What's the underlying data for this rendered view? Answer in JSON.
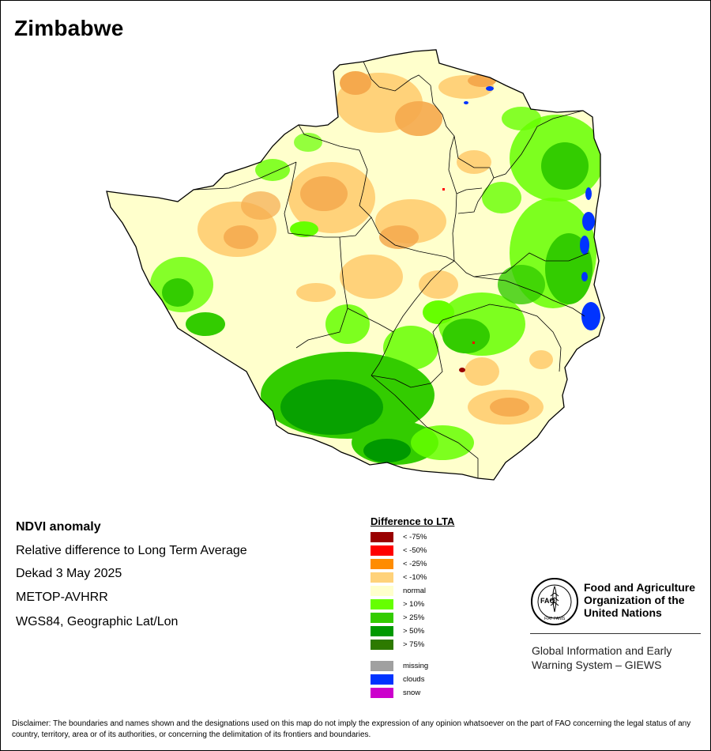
{
  "map_title": "Zimbabwe",
  "info": {
    "title": "NDVI anomaly",
    "subtitle": "Relative difference to Long Term Average",
    "period": "Dekad 3 May 2025",
    "sensor": "METOP-AVHRR",
    "projection": "WGS84, Geographic Lat/Lon"
  },
  "legend": {
    "title": "Difference to LTA",
    "classes": [
      {
        "label": "< -75%",
        "color": "#990000"
      },
      {
        "label": "< -50%",
        "color": "#ff0000"
      },
      {
        "label": "< -25%",
        "color": "#ff8c00"
      },
      {
        "label": "< -10%",
        "color": "#ffd27a"
      },
      {
        "label": "normal",
        "color": "#ffffcc"
      },
      {
        "label": "> 10%",
        "color": "#66ff00"
      },
      {
        "label": "> 25%",
        "color": "#33cc00"
      },
      {
        "label": "> 50%",
        "color": "#009900"
      },
      {
        "label": "> 75%",
        "color": "#2d7a00"
      }
    ],
    "other": [
      {
        "label": "missing",
        "color": "#a0a0a0"
      },
      {
        "label": "clouds",
        "color": "#0033ff"
      },
      {
        "label": "snow",
        "color": "#cc00cc"
      }
    ]
  },
  "org": {
    "name_lines": [
      "Food and Agriculture",
      "Organization of the",
      "United Nations"
    ],
    "logo_text": "FAO",
    "logo_motto": "FIAT PANIS",
    "system_lines": [
      "Global Information and Early",
      "Warning System – GIEWS"
    ]
  },
  "disclaimer": "Disclaimer: The boundaries and names shown and the designations used on this map do not imply the expression of any opinion whatsoever on the part of FAO concerning the legal status of any country, territory, area or of its authorities, or concerning the delimitation of its frontiers and boundaries."
}
